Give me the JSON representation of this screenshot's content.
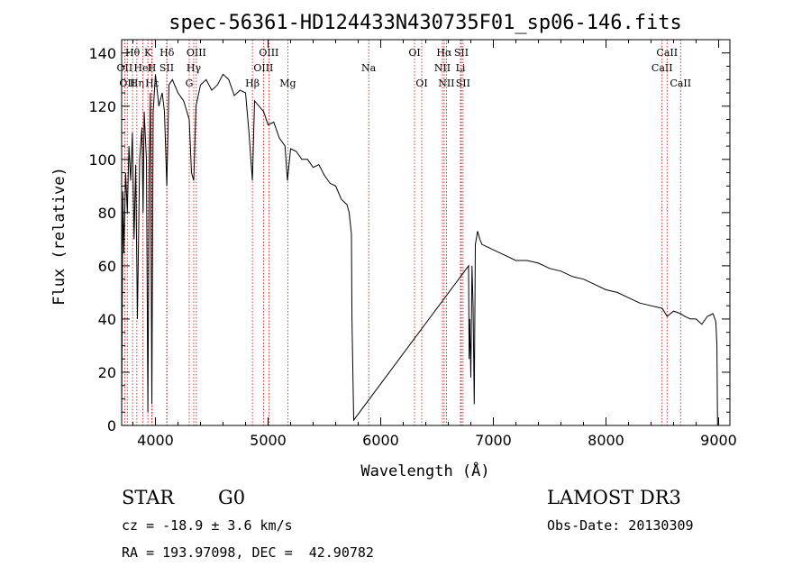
{
  "chart_data": {
    "type": "line",
    "title": "spec-56361-HD124433N430735F01_sp06-146.fits",
    "xlabel": "Wavelength (Å)",
    "ylabel": "Flux (relative)",
    "xlim": [
      3700,
      9100
    ],
    "ylim": [
      0,
      145
    ],
    "xticks": [
      4000,
      5000,
      6000,
      7000,
      8000,
      9000
    ],
    "yticks": [
      0,
      20,
      40,
      60,
      80,
      100,
      120,
      140
    ],
    "series": [
      {
        "name": "flux",
        "x": [
          3700,
          3710,
          3720,
          3735,
          3750,
          3765,
          3780,
          3795,
          3810,
          3825,
          3840,
          3860,
          3880,
          3890,
          3900,
          3920,
          3933,
          3945,
          3955,
          3968,
          3980,
          4000,
          4030,
          4060,
          4080,
          4101,
          4120,
          4150,
          4200,
          4250,
          4300,
          4320,
          4340,
          4360,
          4400,
          4450,
          4500,
          4550,
          4600,
          4650,
          4700,
          4750,
          4800,
          4830,
          4861,
          4880,
          4920,
          4960,
          5000,
          5050,
          5100,
          5150,
          5172,
          5200,
          5250,
          5300,
          5350,
          5400,
          5450,
          5500,
          5550,
          5600,
          5650,
          5700,
          5720,
          5740,
          5745,
          5760,
          6780,
          6785,
          6790,
          6800,
          6810,
          6820,
          6830,
          6840,
          6860,
          6880,
          6900,
          6950,
          7000,
          7100,
          7200,
          7300,
          7400,
          7500,
          7600,
          7700,
          7800,
          7900,
          8000,
          8100,
          8200,
          8300,
          8400,
          8500,
          8542,
          8600,
          8662,
          8700,
          8750,
          8800,
          8850,
          8900,
          8950,
          8975,
          8985,
          8990
        ],
        "values": [
          2,
          88,
          65,
          95,
          80,
          105,
          92,
          110,
          70,
          98,
          40,
          100,
          112,
          80,
          118,
          100,
          5,
          95,
          125,
          8,
          118,
          132,
          120,
          125,
          118,
          90,
          128,
          130,
          125,
          122,
          115,
          95,
          92,
          120,
          128,
          130,
          126,
          128,
          132,
          130,
          124,
          126,
          125,
          110,
          92,
          122,
          120,
          118,
          113,
          114,
          108,
          105,
          92,
          104,
          103,
          100,
          100,
          97,
          98,
          94,
          91,
          90,
          85,
          83,
          80,
          72,
          40,
          2,
          60,
          25,
          40,
          18,
          60,
          45,
          8,
          68,
          73,
          70,
          68,
          67,
          66,
          64,
          62,
          62,
          61,
          59,
          58,
          56,
          55,
          53,
          51,
          50,
          48,
          46,
          45,
          44,
          41,
          43,
          42,
          41,
          40,
          40,
          38,
          41,
          42,
          39,
          30,
          0
        ]
      }
    ],
    "emission_lines": [
      {
        "wavelength": 3727,
        "label": "OII",
        "row": 2
      },
      {
        "wavelength": 3750,
        "label": "OII",
        "row": 3
      },
      {
        "wavelength": 3797,
        "label": "Hθ",
        "row": 1
      },
      {
        "wavelength": 3835,
        "label": "Hη",
        "row": 3
      },
      {
        "wavelength": 3889,
        "label": "HeI",
        "row": 2
      },
      {
        "wavelength": 3933,
        "label": "K",
        "row": 1
      },
      {
        "wavelength": 3968,
        "label": "H",
        "row": 2
      },
      {
        "wavelength": 3970,
        "label": "Hε",
        "row": 3
      },
      {
        "wavelength": 4102,
        "label": "Hδ",
        "row": 1
      },
      {
        "wavelength": 4100,
        "label": "SII",
        "row": 2
      },
      {
        "wavelength": 4300,
        "label": "G",
        "row": 3
      },
      {
        "wavelength": 4340,
        "label": "Hγ",
        "row": 2
      },
      {
        "wavelength": 4363,
        "label": "OIII",
        "row": 1
      },
      {
        "wavelength": 4861,
        "label": "Hβ",
        "row": 3
      },
      {
        "wavelength": 4959,
        "label": "OIII",
        "row": 2
      },
      {
        "wavelength": 5007,
        "label": "OIII",
        "row": 1
      },
      {
        "wavelength": 5175,
        "label": "Mg",
        "row": 3
      },
      {
        "wavelength": 5893,
        "label": "Na",
        "row": 2
      },
      {
        "wavelength": 6300,
        "label": "OI",
        "row": 1
      },
      {
        "wavelength": 6364,
        "label": "OI",
        "row": 3
      },
      {
        "wavelength": 6548,
        "label": "NII",
        "row": 2
      },
      {
        "wavelength": 6563,
        "label": "Hα",
        "row": 1
      },
      {
        "wavelength": 6583,
        "label": "NII",
        "row": 3
      },
      {
        "wavelength": 6708,
        "label": "Li",
        "row": 2
      },
      {
        "wavelength": 6716,
        "label": "SII",
        "row": 1
      },
      {
        "wavelength": 6731,
        "label": "SII",
        "row": 3
      },
      {
        "wavelength": 8498,
        "label": "CaII",
        "row": 2
      },
      {
        "wavelength": 8542,
        "label": "CaII",
        "row": 1
      },
      {
        "wavelength": 8662,
        "label": "CaII",
        "row": 3
      }
    ]
  },
  "info": {
    "object_type": "STAR",
    "subclass": "G0",
    "survey": "LAMOST DR3",
    "redshift_text": "cz = -18.9 ± 3.6 km/s",
    "obs_date": "Obs-Date: 20130309",
    "coords": "RA = 193.97098, DEC =  42.90782"
  }
}
